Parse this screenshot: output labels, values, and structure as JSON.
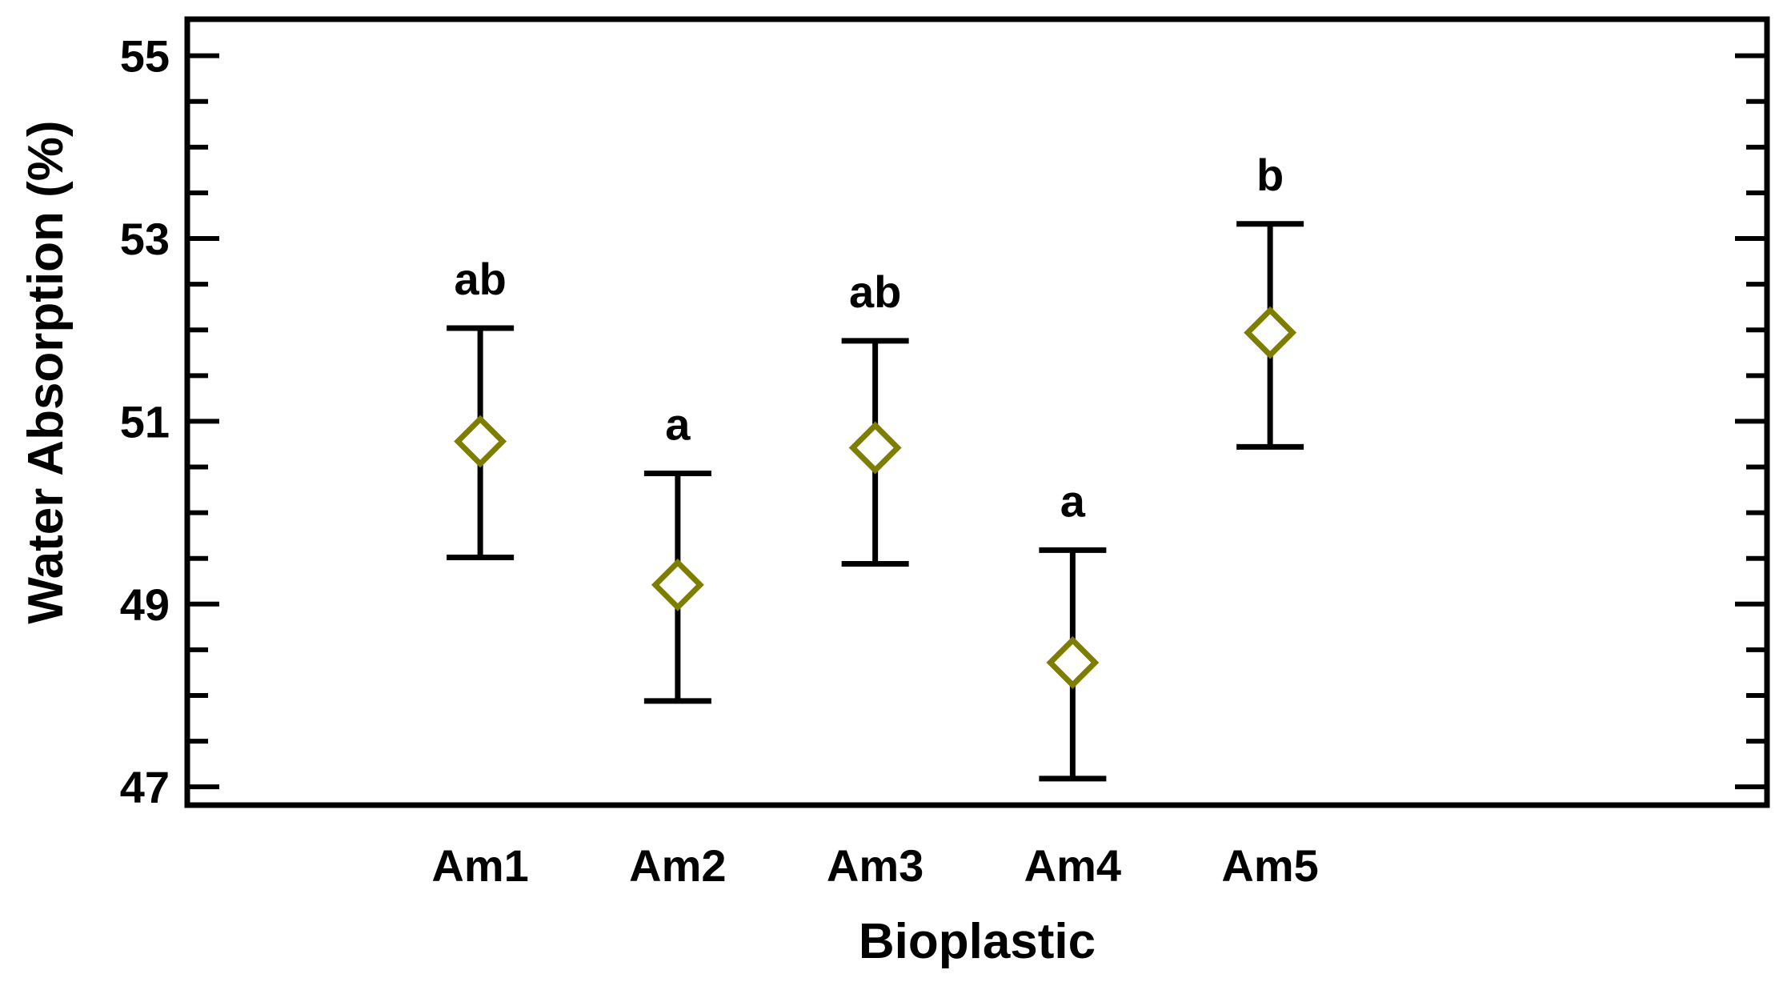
{
  "chart_data": {
    "type": "scatter",
    "xlabel": "Bioplastic",
    "ylabel": "Water Absorption (%)",
    "ylim": [
      46.8,
      55.4
    ],
    "yticks": [
      47,
      49,
      51,
      53,
      55
    ],
    "y_minor_step": 0.5,
    "categories": [
      "Am1",
      "Am2",
      "Am3",
      "Am4",
      "Am5"
    ],
    "series": [
      {
        "values": [
          50.78,
          49.21,
          50.71,
          48.36,
          51.97
        ],
        "lower": [
          49.51,
          47.94,
          49.44,
          47.09,
          50.72
        ],
        "upper": [
          52.02,
          50.43,
          51.88,
          49.59,
          53.16
        ],
        "group_labels": [
          "ab",
          "a",
          "ab",
          "a",
          "b"
        ],
        "marker": "diamond-open"
      }
    ],
    "colors": {
      "marker": "#7d7d00",
      "errorbar": "#000000"
    },
    "grid": false,
    "legend": "none"
  }
}
